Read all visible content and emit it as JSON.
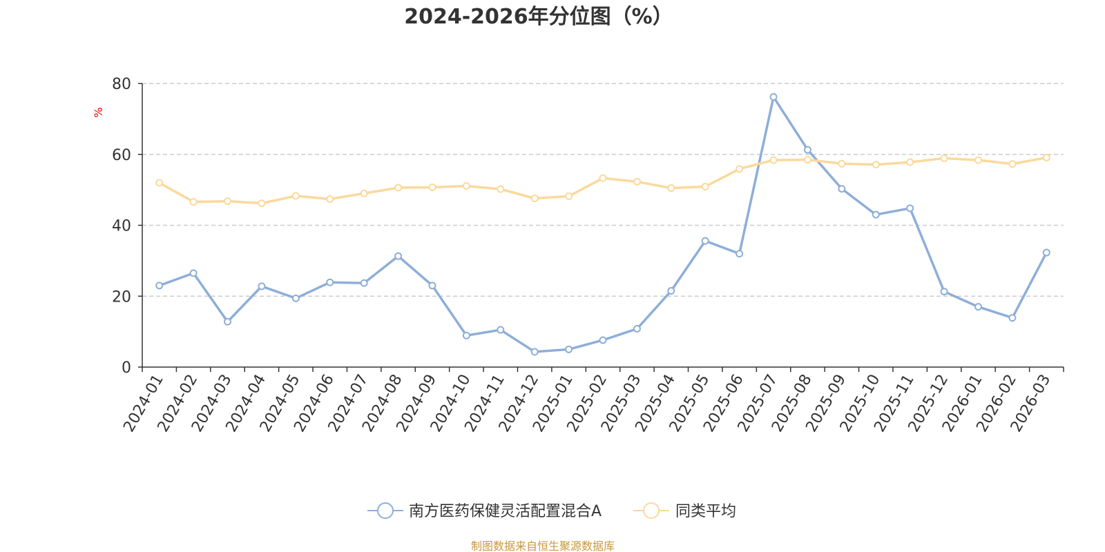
{
  "chart_data": {
    "type": "line",
    "title": "2024-2026年分位图（%）",
    "ylabel": "%",
    "ylim": [
      0,
      80
    ],
    "yticks": [
      0,
      20,
      40,
      60,
      80
    ],
    "grid": true,
    "legend_position": "bottom-center",
    "categories": [
      "2024-01",
      "2024-02",
      "2024-03",
      "2024-04",
      "2024-05",
      "2024-06",
      "2024-07",
      "2024-08",
      "2024-09",
      "2024-10",
      "2024-11",
      "2024-12",
      "2025-01",
      "2025-02",
      "2025-03",
      "2025-04",
      "2025-05",
      "2025-06",
      "2025-07",
      "2025-08",
      "2025-09",
      "2025-10",
      "2025-11",
      "2025-12",
      "2026-01",
      "2026-02",
      "2026-03"
    ],
    "series": [
      {
        "name": "南方医药保健灵活配置混合A",
        "color": "#8eaed8",
        "values": [
          23.0,
          26.5,
          12.8,
          22.8,
          19.4,
          23.9,
          23.7,
          31.3,
          23.0,
          8.9,
          10.5,
          4.3,
          5.0,
          7.6,
          10.8,
          21.5,
          35.6,
          32.0,
          76.2,
          61.3,
          50.3,
          43.0,
          44.8,
          21.3,
          17.0,
          13.9,
          32.3
        ]
      },
      {
        "name": "同类平均",
        "color": "#fbd99b",
        "values": [
          52.0,
          46.6,
          46.8,
          46.2,
          48.3,
          47.4,
          49.0,
          50.6,
          50.7,
          51.1,
          50.2,
          47.6,
          48.2,
          53.3,
          52.3,
          50.5,
          50.9,
          55.9,
          58.4,
          58.5,
          57.4,
          57.1,
          57.8,
          58.9,
          58.4,
          57.3,
          59.1
        ]
      }
    ],
    "source": "制图数据来自恒生聚源数据库",
    "axis_color": "#333333",
    "grid_color": "#cccccc",
    "ylabel_color": "#ff0000",
    "source_color": "#c8973a"
  }
}
